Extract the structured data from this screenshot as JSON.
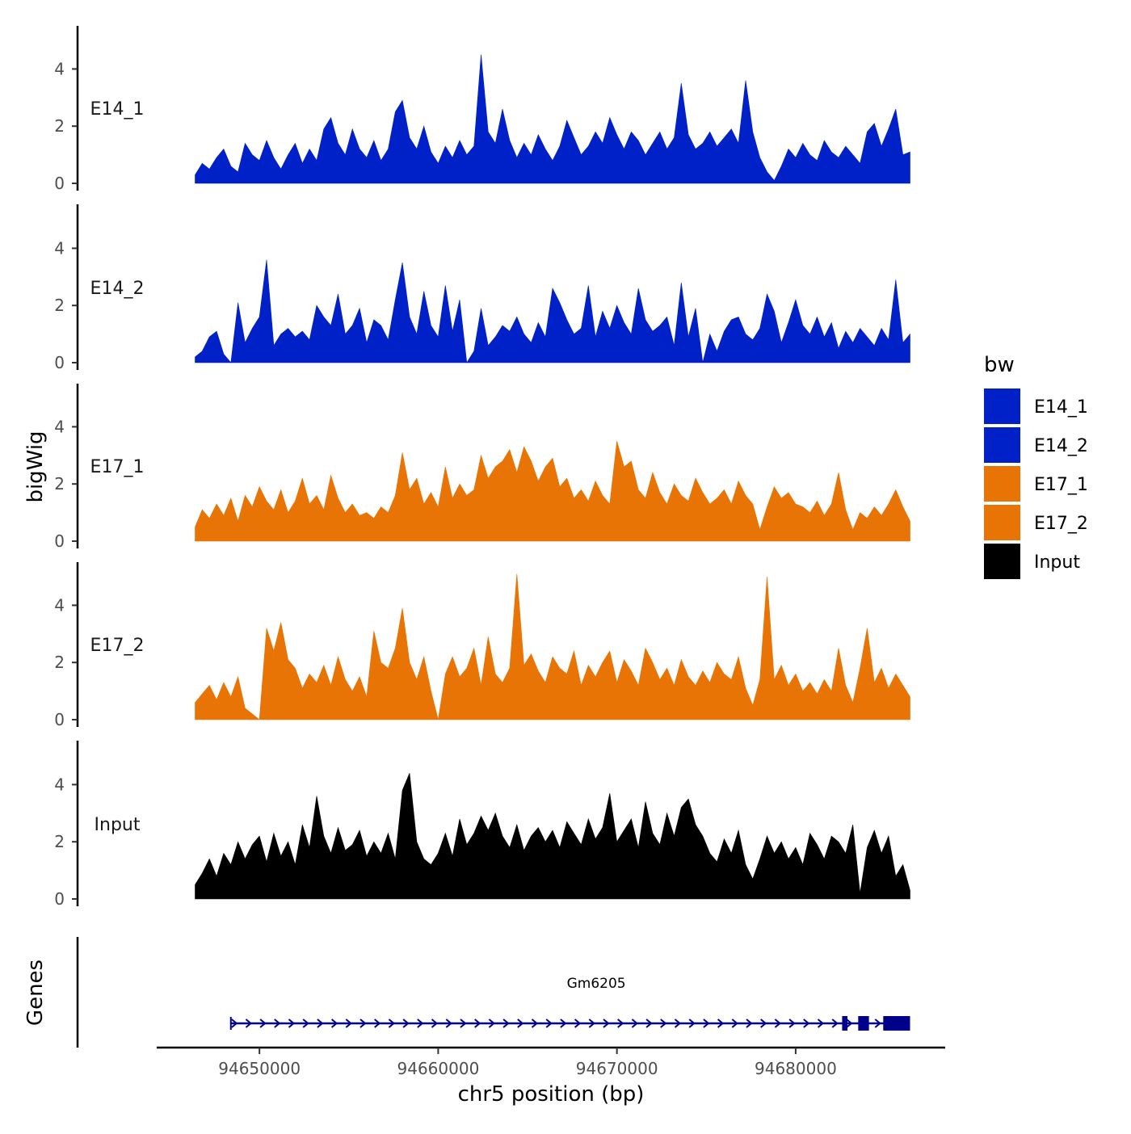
{
  "chart_data": {
    "type": "area",
    "ylabel": "bigWig",
    "xlabel": "chr5 position (bp)",
    "x_range": [
      94646400,
      94686400
    ],
    "x_ticks": [
      94650000,
      94660000,
      94670000,
      94680000
    ],
    "x_tick_labels": [
      "94650000",
      "94660000",
      "94670000",
      "94680000"
    ],
    "ylim": [
      0,
      5.5
    ],
    "y_ticks": [
      0,
      2,
      4
    ],
    "y_tick_labels": [
      "0",
      "2",
      "4"
    ],
    "legend": {
      "title": "bw",
      "position": "right",
      "entries": [
        {
          "label": "E14_1",
          "color": "#0020C8"
        },
        {
          "label": "E14_2",
          "color": "#0020C8"
        },
        {
          "label": "E17_1",
          "color": "#E87405"
        },
        {
          "label": "E17_2",
          "color": "#E87405"
        },
        {
          "label": "Input",
          "color": "#000000"
        }
      ]
    },
    "tracks": [
      {
        "name": "E14_1",
        "color": "#0020C8",
        "x": [
          94646400,
          94646800,
          94647200,
          94647600,
          94648000,
          94648400,
          94648800,
          94649200,
          94649600,
          94650000,
          94650400,
          94650800,
          94651200,
          94651600,
          94652000,
          94652400,
          94652800,
          94653200,
          94653600,
          94654000,
          94654400,
          94654800,
          94655200,
          94655600,
          94656000,
          94656400,
          94656800,
          94657200,
          94657600,
          94658000,
          94658400,
          94658800,
          94659200,
          94659600,
          94660000,
          94660400,
          94660800,
          94661200,
          94661600,
          94662000,
          94662400,
          94662800,
          94663200,
          94663600,
          94664000,
          94664400,
          94664800,
          94665200,
          94665600,
          94666000,
          94666400,
          94666800,
          94667200,
          94667600,
          94668000,
          94668400,
          94668800,
          94669200,
          94669600,
          94670000,
          94670400,
          94670800,
          94671200,
          94671600,
          94672000,
          94672400,
          94672800,
          94673200,
          94673600,
          94674000,
          94674400,
          94674800,
          94675200,
          94675600,
          94676000,
          94676400,
          94676800,
          94677200,
          94677600,
          94678000,
          94678400,
          94678800,
          94679200,
          94679600,
          94680000,
          94680400,
          94680800,
          94681200,
          94681600,
          94682000,
          94682400,
          94682800,
          94683200,
          94683600,
          94684000,
          94684400,
          94684800,
          94685200,
          94685600,
          94686000,
          94686400
        ],
        "values": [
          0.3,
          0.7,
          0.5,
          0.9,
          1.2,
          0.6,
          0.4,
          1.4,
          1.0,
          0.8,
          1.5,
          0.9,
          0.5,
          1.0,
          1.4,
          0.7,
          1.2,
          0.8,
          1.9,
          2.3,
          1.4,
          1.0,
          1.9,
          1.2,
          0.9,
          1.5,
          0.8,
          1.2,
          2.5,
          2.9,
          1.6,
          1.2,
          2.0,
          1.1,
          0.7,
          1.3,
          0.9,
          1.5,
          1.0,
          1.3,
          4.5,
          1.8,
          1.4,
          2.6,
          1.5,
          0.9,
          1.4,
          1.0,
          1.7,
          1.2,
          0.8,
          1.3,
          2.2,
          1.6,
          1.0,
          1.3,
          1.8,
          1.4,
          2.3,
          1.7,
          1.2,
          1.8,
          1.5,
          1.0,
          1.4,
          1.8,
          1.2,
          1.6,
          3.5,
          1.7,
          1.2,
          1.4,
          1.8,
          1.3,
          1.6,
          1.9,
          1.4,
          3.6,
          1.8,
          0.9,
          0.4,
          0.1,
          0.6,
          1.2,
          0.9,
          1.4,
          1.0,
          0.8,
          1.5,
          1.1,
          0.9,
          1.3,
          1.0,
          0.7,
          1.8,
          2.1,
          1.3,
          1.9,
          2.6,
          1.0,
          1.1
        ]
      },
      {
        "name": "E14_2",
        "color": "#0020C8",
        "x": [
          94646400,
          94646800,
          94647200,
          94647600,
          94648000,
          94648400,
          94648800,
          94649200,
          94649600,
          94650000,
          94650400,
          94650800,
          94651200,
          94651600,
          94652000,
          94652400,
          94652800,
          94653200,
          94653600,
          94654000,
          94654400,
          94654800,
          94655200,
          94655600,
          94656000,
          94656400,
          94656800,
          94657200,
          94657600,
          94658000,
          94658400,
          94658800,
          94659200,
          94659600,
          94660000,
          94660400,
          94660800,
          94661200,
          94661600,
          94662000,
          94662400,
          94662800,
          94663200,
          94663600,
          94664000,
          94664400,
          94664800,
          94665200,
          94665600,
          94666000,
          94666400,
          94666800,
          94667200,
          94667600,
          94668000,
          94668400,
          94668800,
          94669200,
          94669600,
          94670000,
          94670400,
          94670800,
          94671200,
          94671600,
          94672000,
          94672400,
          94672800,
          94673200,
          94673600,
          94674000,
          94674400,
          94674800,
          94675200,
          94675600,
          94676000,
          94676400,
          94676800,
          94677200,
          94677600,
          94678000,
          94678400,
          94678800,
          94679200,
          94679600,
          94680000,
          94680400,
          94680800,
          94681200,
          94681600,
          94682000,
          94682400,
          94682800,
          94683200,
          94683600,
          94684000,
          94684400,
          94684800,
          94685200,
          94685600,
          94686000,
          94686400
        ],
        "values": [
          0.2,
          0.4,
          0.9,
          1.1,
          0.3,
          0.0,
          2.1,
          0.7,
          1.2,
          1.6,
          3.6,
          0.6,
          1.0,
          1.2,
          0.9,
          1.1,
          0.8,
          2.0,
          1.6,
          1.3,
          2.4,
          1.0,
          1.3,
          1.9,
          0.7,
          1.5,
          1.3,
          0.8,
          2.2,
          3.5,
          1.6,
          1.0,
          2.5,
          1.3,
          0.9,
          2.7,
          1.1,
          2.2,
          0.0,
          0.4,
          1.9,
          0.6,
          0.9,
          1.3,
          1.1,
          1.6,
          1.0,
          0.7,
          1.4,
          0.9,
          2.6,
          2.1,
          1.5,
          1.0,
          1.2,
          2.7,
          0.9,
          1.8,
          1.2,
          2.0,
          1.4,
          1.0,
          2.6,
          1.5,
          1.1,
          1.3,
          1.6,
          0.6,
          2.8,
          0.9,
          1.9,
          0.0,
          1.0,
          0.4,
          1.1,
          1.5,
          1.6,
          1.0,
          0.8,
          1.2,
          2.4,
          1.8,
          0.7,
          1.4,
          2.2,
          1.3,
          1.0,
          1.6,
          0.9,
          1.4,
          0.5,
          1.1,
          0.7,
          1.2,
          0.9,
          0.6,
          1.2,
          0.8,
          2.9,
          0.7,
          1.0
        ]
      },
      {
        "name": "E17_1",
        "color": "#E87405",
        "x": [
          94646400,
          94646800,
          94647200,
          94647600,
          94648000,
          94648400,
          94648800,
          94649200,
          94649600,
          94650000,
          94650400,
          94650800,
          94651200,
          94651600,
          94652000,
          94652400,
          94652800,
          94653200,
          94653600,
          94654000,
          94654400,
          94654800,
          94655200,
          94655600,
          94656000,
          94656400,
          94656800,
          94657200,
          94657600,
          94658000,
          94658400,
          94658800,
          94659200,
          94659600,
          94660000,
          94660400,
          94660800,
          94661200,
          94661600,
          94662000,
          94662400,
          94662800,
          94663200,
          94663600,
          94664000,
          94664400,
          94664800,
          94665200,
          94665600,
          94666000,
          94666400,
          94666800,
          94667200,
          94667600,
          94668000,
          94668400,
          94668800,
          94669200,
          94669600,
          94670000,
          94670400,
          94670800,
          94671200,
          94671600,
          94672000,
          94672400,
          94672800,
          94673200,
          94673600,
          94674000,
          94674400,
          94674800,
          94675200,
          94675600,
          94676000,
          94676400,
          94676800,
          94677200,
          94677600,
          94678000,
          94678400,
          94678800,
          94679200,
          94679600,
          94680000,
          94680400,
          94680800,
          94681200,
          94681600,
          94682000,
          94682400,
          94682800,
          94683200,
          94683600,
          94684000,
          94684400,
          94684800,
          94685200,
          94685600,
          94686000,
          94686400
        ],
        "values": [
          0.5,
          1.1,
          0.8,
          1.3,
          0.9,
          1.5,
          0.7,
          1.6,
          1.2,
          1.9,
          1.4,
          1.1,
          1.8,
          1.0,
          1.4,
          2.2,
          1.3,
          1.6,
          1.1,
          2.3,
          1.5,
          1.0,
          1.3,
          0.9,
          1.0,
          0.8,
          1.2,
          1.0,
          1.6,
          3.1,
          1.8,
          2.2,
          1.3,
          1.7,
          1.2,
          2.6,
          1.5,
          2.0,
          1.6,
          1.8,
          3.0,
          2.2,
          2.6,
          2.8,
          3.2,
          2.4,
          3.3,
          2.8,
          2.1,
          2.6,
          2.9,
          1.9,
          2.2,
          1.5,
          1.8,
          1.4,
          2.1,
          1.6,
          1.3,
          3.5,
          2.6,
          2.8,
          1.8,
          1.5,
          2.4,
          1.7,
          1.3,
          2.0,
          1.6,
          1.4,
          2.2,
          1.7,
          1.3,
          1.5,
          1.8,
          1.3,
          2.1,
          1.6,
          1.3,
          0.4,
          1.2,
          1.9,
          1.5,
          1.7,
          1.3,
          1.2,
          1.0,
          1.4,
          0.9,
          1.3,
          2.4,
          1.1,
          0.4,
          1.0,
          0.8,
          1.2,
          0.9,
          1.3,
          1.8,
          1.2,
          0.7
        ]
      },
      {
        "name": "E17_2",
        "color": "#E87405",
        "x": [
          94646400,
          94646800,
          94647200,
          94647600,
          94648000,
          94648400,
          94648800,
          94649200,
          94649600,
          94650000,
          94650400,
          94650800,
          94651200,
          94651600,
          94652000,
          94652400,
          94652800,
          94653200,
          94653600,
          94654000,
          94654400,
          94654800,
          94655200,
          94655600,
          94656000,
          94656400,
          94656800,
          94657200,
          94657600,
          94658000,
          94658400,
          94658800,
          94659200,
          94659600,
          94660000,
          94660400,
          94660800,
          94661200,
          94661600,
          94662000,
          94662400,
          94662800,
          94663200,
          94663600,
          94664000,
          94664400,
          94664800,
          94665200,
          94665600,
          94666000,
          94666400,
          94666800,
          94667200,
          94667600,
          94668000,
          94668400,
          94668800,
          94669200,
          94669600,
          94670000,
          94670400,
          94670800,
          94671200,
          94671600,
          94672000,
          94672400,
          94672800,
          94673200,
          94673600,
          94674000,
          94674400,
          94674800,
          94675200,
          94675600,
          94676000,
          94676400,
          94676800,
          94677200,
          94677600,
          94678000,
          94678400,
          94678800,
          94679200,
          94679600,
          94680000,
          94680400,
          94680800,
          94681200,
          94681600,
          94682000,
          94682400,
          94682800,
          94683200,
          94683600,
          94684000,
          94684400,
          94684800,
          94685200,
          94685600,
          94686000,
          94686400
        ],
        "values": [
          0.6,
          0.9,
          1.2,
          0.7,
          1.3,
          0.8,
          1.5,
          0.4,
          0.2,
          0.0,
          3.2,
          2.4,
          3.4,
          2.1,
          1.8,
          1.1,
          1.6,
          1.3,
          1.9,
          1.2,
          2.2,
          1.4,
          1.0,
          1.5,
          0.8,
          3.1,
          2.0,
          1.8,
          2.5,
          3.9,
          2.0,
          1.4,
          2.2,
          1.0,
          0.0,
          1.6,
          2.2,
          1.5,
          1.8,
          2.5,
          1.2,
          2.9,
          1.6,
          1.3,
          1.8,
          5.1,
          1.9,
          2.3,
          1.7,
          1.3,
          2.2,
          1.8,
          1.6,
          2.4,
          1.2,
          1.9,
          1.5,
          2.0,
          2.4,
          1.3,
          2.1,
          1.7,
          1.2,
          2.5,
          2.0,
          1.4,
          1.8,
          1.2,
          2.1,
          1.5,
          1.2,
          1.7,
          1.3,
          2.0,
          1.6,
          1.4,
          2.2,
          1.1,
          0.5,
          1.4,
          5.0,
          1.4,
          1.9,
          1.2,
          1.6,
          1.0,
          1.3,
          0.9,
          1.4,
          1.0,
          2.5,
          1.2,
          0.6,
          1.8,
          3.2,
          1.3,
          1.8,
          1.1,
          1.6,
          1.2,
          0.8
        ]
      },
      {
        "name": "Input",
        "color": "#000000",
        "x": [
          94646400,
          94646800,
          94647200,
          94647600,
          94648000,
          94648400,
          94648800,
          94649200,
          94649600,
          94650000,
          94650400,
          94650800,
          94651200,
          94651600,
          94652000,
          94652400,
          94652800,
          94653200,
          94653600,
          94654000,
          94654400,
          94654800,
          94655200,
          94655600,
          94656000,
          94656400,
          94656800,
          94657200,
          94657600,
          94658000,
          94658400,
          94658800,
          94659200,
          94659600,
          94660000,
          94660400,
          94660800,
          94661200,
          94661600,
          94662000,
          94662400,
          94662800,
          94663200,
          94663600,
          94664000,
          94664400,
          94664800,
          94665200,
          94665600,
          94666000,
          94666400,
          94666800,
          94667200,
          94667600,
          94668000,
          94668400,
          94668800,
          94669200,
          94669600,
          94670000,
          94670400,
          94670800,
          94671200,
          94671600,
          94672000,
          94672400,
          94672800,
          94673200,
          94673600,
          94674000,
          94674400,
          94674800,
          94675200,
          94675600,
          94676000,
          94676400,
          94676800,
          94677200,
          94677600,
          94678000,
          94678400,
          94678800,
          94679200,
          94679600,
          94680000,
          94680400,
          94680800,
          94681200,
          94681600,
          94682000,
          94682400,
          94682800,
          94683200,
          94683600,
          94684000,
          94684400,
          94684800,
          94685200,
          94685600,
          94686000,
          94686400
        ],
        "values": [
          0.5,
          0.9,
          1.4,
          0.8,
          1.6,
          1.2,
          2.0,
          1.4,
          1.9,
          2.2,
          1.3,
          2.3,
          1.5,
          2.0,
          1.2,
          2.6,
          1.8,
          3.6,
          2.2,
          1.6,
          2.5,
          1.7,
          1.9,
          2.4,
          1.5,
          2.0,
          1.6,
          2.3,
          1.4,
          3.8,
          4.4,
          2.0,
          1.4,
          1.2,
          1.6,
          2.3,
          1.5,
          2.8,
          1.9,
          2.3,
          2.9,
          2.4,
          3.0,
          2.2,
          1.8,
          2.6,
          1.7,
          2.2,
          2.5,
          2.0,
          2.4,
          1.8,
          2.7,
          2.3,
          1.9,
          2.8,
          2.1,
          2.5,
          3.7,
          2.0,
          2.4,
          2.8,
          1.8,
          3.4,
          2.3,
          1.9,
          3.0,
          2.2,
          3.2,
          3.5,
          2.6,
          2.2,
          1.6,
          1.3,
          2.1,
          1.6,
          2.4,
          1.2,
          0.7,
          1.4,
          2.2,
          1.6,
          2.0,
          1.4,
          1.8,
          1.2,
          2.3,
          1.9,
          1.4,
          2.2,
          2.0,
          1.6,
          2.6,
          0.2,
          1.8,
          2.4,
          1.6,
          2.2,
          0.8,
          1.2,
          0.3
        ]
      }
    ],
    "gene_track": {
      "label": "Genes",
      "gene_name": "Gm6205",
      "color": "#00008B",
      "start": 94648400,
      "end": 94686400,
      "strand": "+",
      "exons": [
        [
          94682600,
          94682900
        ],
        [
          94683500,
          94684100
        ],
        [
          94684900,
          94686400
        ]
      ]
    }
  }
}
